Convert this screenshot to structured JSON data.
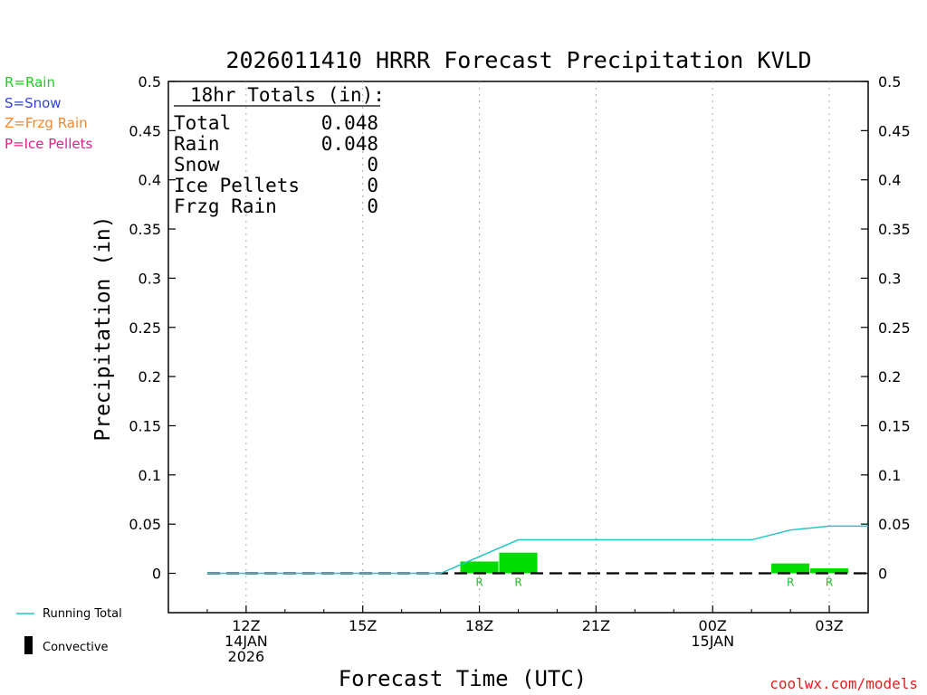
{
  "title": "2026011410 HRRR Forecast Precipitation KVLD",
  "ylabel": "Precipitation (in)",
  "xlabel": "Forecast Time (UTC)",
  "credit": "coolwx.com/models",
  "legend_types": [
    {
      "label": "R=Rain",
      "color": "#22cc22"
    },
    {
      "label": "S=Snow",
      "color": "#3344dd"
    },
    {
      "label": "Z=Frzg Rain",
      "color": "#ee8833"
    },
    {
      "label": "P=Ice Pellets",
      "color": "#e0208a"
    }
  ],
  "legend_bottom": {
    "running_total": "Running Total",
    "convective": "Convective"
  },
  "totals": {
    "heading": "18hr Totals (in):",
    "rows": [
      {
        "label": "Total",
        "value": "0.048"
      },
      {
        "label": "Rain",
        "value": "0.048"
      },
      {
        "label": "Snow",
        "value": "0"
      },
      {
        "label": "Ice Pellets",
        "value": "0"
      },
      {
        "label": "Frzg Rain",
        "value": "0"
      }
    ]
  },
  "colors": {
    "bar": "#00dd00",
    "running_total": "#22c6c6",
    "convective": "#000000",
    "grid": "#aaaaaa",
    "rain_mark": "#22bb22"
  },
  "chart_data": {
    "type": "bar",
    "x_unit": "forecast hour (UTC, from 2026-01-14 10Z)",
    "xlim": [
      10,
      28
    ],
    "ylim": [
      -0.04,
      0.5
    ],
    "yticks": [
      0,
      0.05,
      0.1,
      0.15,
      0.2,
      0.25,
      0.3,
      0.35,
      0.4,
      0.45,
      0.5
    ],
    "ytick_labels": [
      "0",
      "0.05",
      "0.1",
      "0.15",
      "0.2",
      "0.25",
      "0.3",
      "0.35",
      "0.4",
      "0.45",
      "0.5"
    ],
    "xticks": [
      {
        "hour": 12,
        "lines": [
          "12Z",
          "14JAN",
          "2026"
        ]
      },
      {
        "hour": 15,
        "lines": [
          "15Z"
        ]
      },
      {
        "hour": 18,
        "lines": [
          "18Z"
        ]
      },
      {
        "hour": 21,
        "lines": [
          "21Z"
        ]
      },
      {
        "hour": 24,
        "lines": [
          "00Z",
          "15JAN"
        ]
      },
      {
        "hour": 27,
        "lines": [
          "03Z"
        ]
      }
    ],
    "grid": true,
    "bars": [
      {
        "hour": 18,
        "value": 0.012,
        "type": "R"
      },
      {
        "hour": 19,
        "value": 0.021,
        "type": "R"
      },
      {
        "hour": 26,
        "value": 0.01,
        "type": "R"
      },
      {
        "hour": 27,
        "value": 0.005,
        "type": "R"
      }
    ],
    "running_total": {
      "hours": [
        11,
        17,
        19,
        25,
        26,
        27,
        28
      ],
      "values": [
        0,
        0,
        0.034,
        0.034,
        0.044,
        0.048,
        0.048
      ]
    },
    "convective_line": {
      "from_hour": 11,
      "to_hour": 28,
      "value": 0
    }
  }
}
